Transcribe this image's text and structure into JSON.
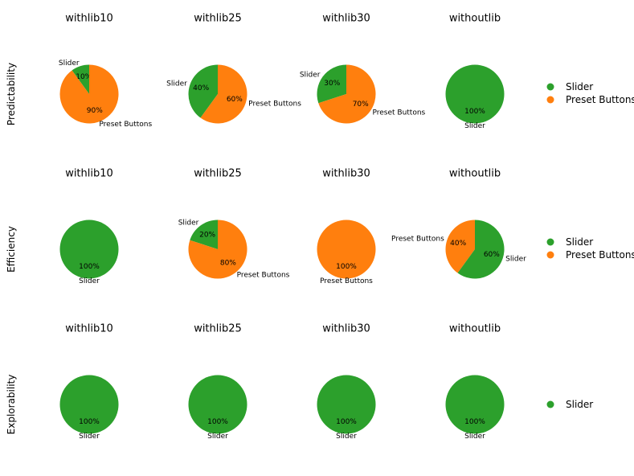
{
  "colors": {
    "Slider": "#2ca02c",
    "Preset Buttons": "#ff7f0e"
  },
  "chart_data": [
    {
      "type": "pie",
      "row_label": "Predictability",
      "charts": [
        {
          "title": "withlib10",
          "slices": [
            {
              "label": "Slider",
              "value": 10,
              "pct_text": "10%"
            },
            {
              "label": "Preset Buttons",
              "value": 90,
              "pct_text": "90%"
            }
          ]
        },
        {
          "title": "withlib25",
          "slices": [
            {
              "label": "Slider",
              "value": 40,
              "pct_text": "40%"
            },
            {
              "label": "Preset Buttons",
              "value": 60,
              "pct_text": "60%"
            }
          ]
        },
        {
          "title": "withlib30",
          "slices": [
            {
              "label": "Slider",
              "value": 30,
              "pct_text": "30%"
            },
            {
              "label": "Preset Buttons",
              "value": 70,
              "pct_text": "70%"
            }
          ]
        },
        {
          "title": "withoutlib",
          "slices": [
            {
              "label": "Slider",
              "value": 100,
              "pct_text": "100%"
            }
          ]
        }
      ],
      "legend": [
        "Slider",
        "Preset Buttons"
      ]
    },
    {
      "type": "pie",
      "row_label": "Efficiency",
      "charts": [
        {
          "title": "withlib10",
          "slices": [
            {
              "label": "Slider",
              "value": 100,
              "pct_text": "100%"
            }
          ]
        },
        {
          "title": "withlib25",
          "slices": [
            {
              "label": "Slider",
              "value": 20,
              "pct_text": "20%"
            },
            {
              "label": "Preset Buttons",
              "value": 80,
              "pct_text": "80%"
            }
          ]
        },
        {
          "title": "withlib30",
          "slices": [
            {
              "label": "Preset Buttons",
              "value": 100,
              "pct_text": "100%"
            }
          ]
        },
        {
          "title": "withoutlib",
          "slices": [
            {
              "label": "Preset Buttons",
              "value": 40,
              "pct_text": "40%"
            },
            {
              "label": "Slider",
              "value": 60,
              "pct_text": "60%"
            }
          ]
        }
      ],
      "legend": [
        "Slider",
        "Preset Buttons"
      ]
    },
    {
      "type": "pie",
      "row_label": "Explorability",
      "charts": [
        {
          "title": "withlib10",
          "slices": [
            {
              "label": "Slider",
              "value": 100,
              "pct_text": "100%"
            }
          ]
        },
        {
          "title": "withlib25",
          "slices": [
            {
              "label": "Slider",
              "value": 100,
              "pct_text": "100%"
            }
          ]
        },
        {
          "title": "withlib30",
          "slices": [
            {
              "label": "Slider",
              "value": 100,
              "pct_text": "100%"
            }
          ]
        },
        {
          "title": "withoutlib",
          "slices": [
            {
              "label": "Slider",
              "value": 100,
              "pct_text": "100%"
            }
          ]
        }
      ],
      "legend": [
        "Slider"
      ]
    }
  ]
}
